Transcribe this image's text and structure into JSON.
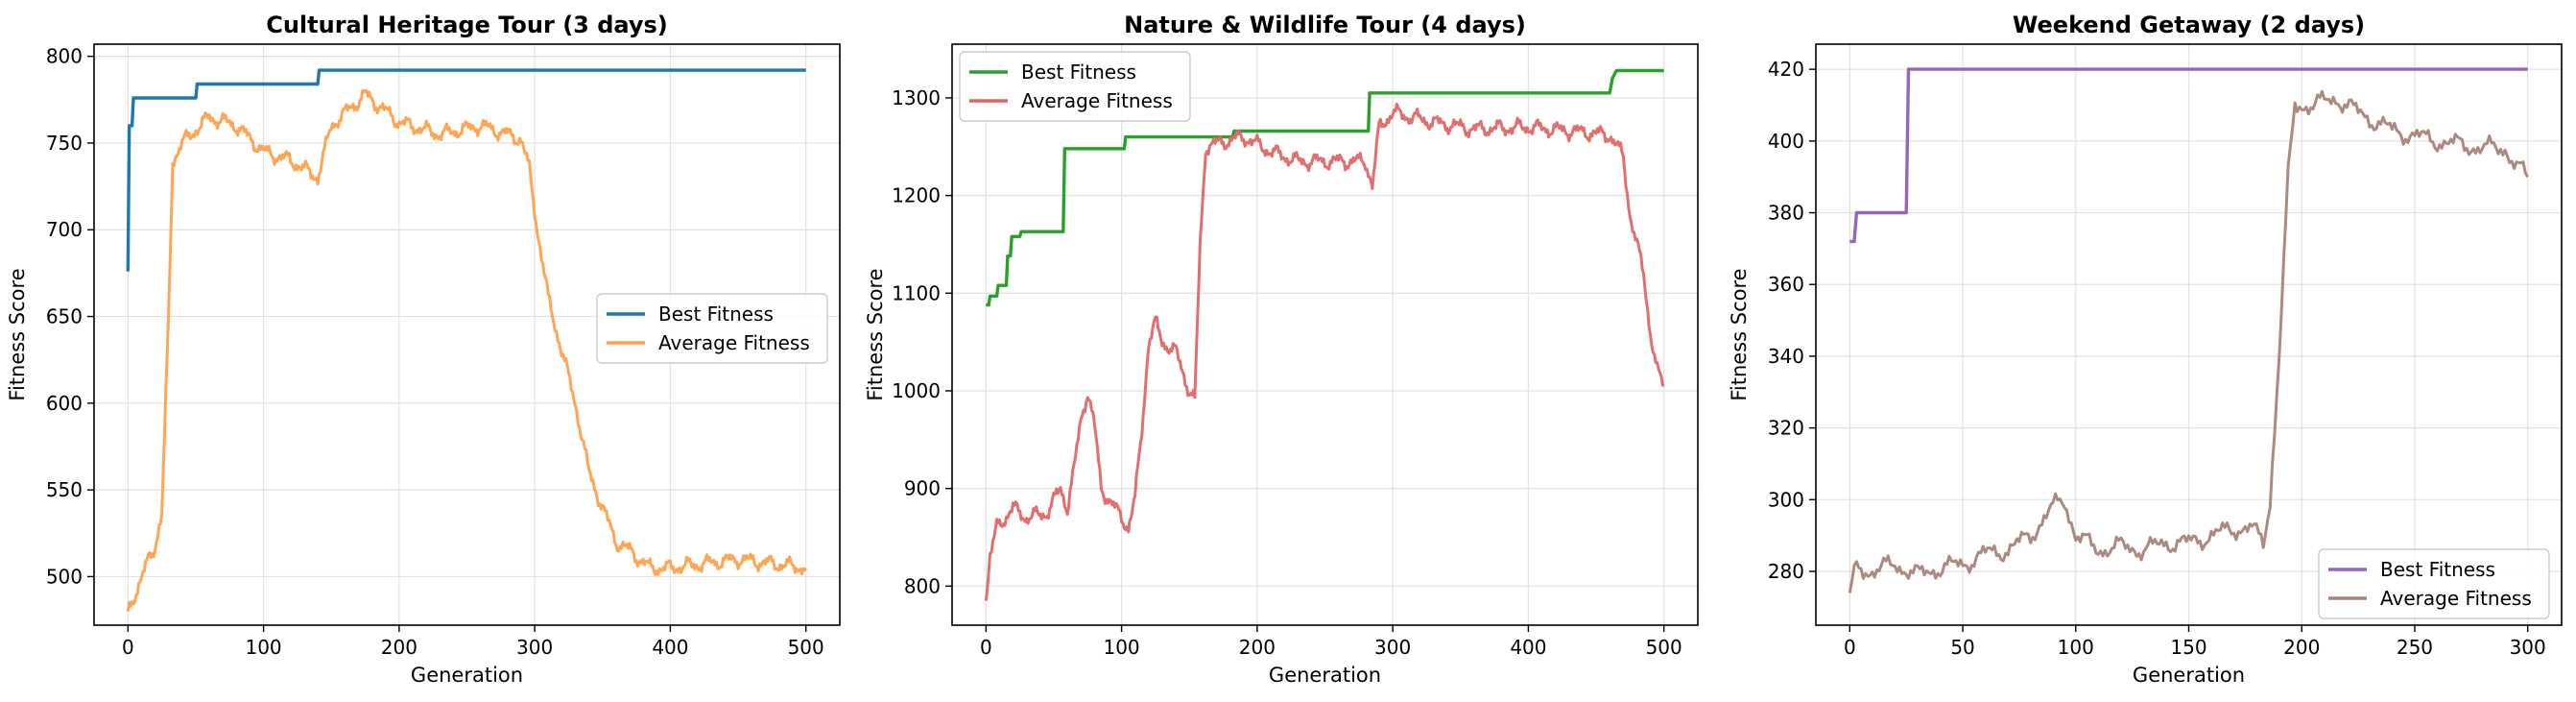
{
  "chart_data": [
    {
      "type": "line",
      "title": "Cultural Heritage Tour (3 days)",
      "xlabel": "Generation",
      "ylabel": "Fitness Score",
      "xlim": [
        -25,
        525
      ],
      "ylim": [
        472,
        807
      ],
      "xticks": [
        0,
        100,
        200,
        300,
        400,
        500
      ],
      "yticks": [
        500,
        550,
        600,
        650,
        700,
        750,
        800
      ],
      "grid": true,
      "legend": "center-right",
      "series": [
        {
          "name": "Best Fitness",
          "color": "#1f77b4",
          "style": "step",
          "points": [
            [
              0,
              676
            ],
            [
              1,
              760
            ],
            [
              3,
              760
            ],
            [
              4,
              776
            ],
            [
              50,
              776
            ],
            [
              51,
              784
            ],
            [
              140,
              784
            ],
            [
              141,
              792
            ],
            [
              500,
              792
            ]
          ]
        },
        {
          "name": "Average Fitness",
          "color": "#ffa04d",
          "style": "noisy",
          "amp": 5,
          "points": [
            [
              0,
              480
            ],
            [
              5,
              490
            ],
            [
              10,
              498
            ],
            [
              15,
              510
            ],
            [
              20,
              518
            ],
            [
              25,
              535
            ],
            [
              30,
              650
            ],
            [
              33,
              740
            ],
            [
              40,
              750
            ],
            [
              60,
              765
            ],
            [
              80,
              760
            ],
            [
              100,
              745
            ],
            [
              120,
              740
            ],
            [
              140,
              730
            ],
            [
              150,
              760
            ],
            [
              175,
              778
            ],
            [
              200,
              762
            ],
            [
              230,
              755
            ],
            [
              260,
              760
            ],
            [
              280,
              755
            ],
            [
              290,
              752
            ],
            [
              296,
              735
            ],
            [
              302,
              700
            ],
            [
              310,
              660
            ],
            [
              320,
              630
            ],
            [
              330,
              600
            ],
            [
              340,
              560
            ],
            [
              350,
              540
            ],
            [
              360,
              520
            ],
            [
              370,
              515
            ],
            [
              385,
              505
            ],
            [
              400,
              505
            ],
            [
              450,
              510
            ],
            [
              500,
              505
            ]
          ]
        }
      ]
    },
    {
      "type": "line",
      "title": "Nature & Wildlife Tour (4 days)",
      "xlabel": "Generation",
      "ylabel": "Fitness Score",
      "xlim": [
        -25,
        525
      ],
      "ylim": [
        760,
        1355
      ],
      "xticks": [
        0,
        100,
        200,
        300,
        400,
        500
      ],
      "yticks": [
        800,
        900,
        1000,
        1100,
        1200,
        1300
      ],
      "grid": true,
      "legend": "top-left",
      "series": [
        {
          "name": "Best Fitness",
          "color": "#2ca02c",
          "style": "step",
          "points": [
            [
              0,
              1088
            ],
            [
              2,
              1088
            ],
            [
              3,
              1097
            ],
            [
              8,
              1097
            ],
            [
              9,
              1108
            ],
            [
              15,
              1108
            ],
            [
              16,
              1138
            ],
            [
              18,
              1138
            ],
            [
              19,
              1158
            ],
            [
              25,
              1158
            ],
            [
              26,
              1163
            ],
            [
              57,
              1163
            ],
            [
              58,
              1248
            ],
            [
              102,
              1248
            ],
            [
              103,
              1260
            ],
            [
              182,
              1260
            ],
            [
              183,
              1266
            ],
            [
              282,
              1266
            ],
            [
              283,
              1305
            ],
            [
              460,
              1305
            ],
            [
              462,
              1320
            ],
            [
              465,
              1328
            ],
            [
              500,
              1328
            ]
          ]
        },
        {
          "name": "Average Fitness",
          "color": "#e06666",
          "style": "noisy",
          "amp": 9,
          "points": [
            [
              0,
              785
            ],
            [
              3,
              830
            ],
            [
              8,
              860
            ],
            [
              20,
              880
            ],
            [
              30,
              870
            ],
            [
              45,
              875
            ],
            [
              55,
              900
            ],
            [
              60,
              880
            ],
            [
              65,
              920
            ],
            [
              70,
              970
            ],
            [
              75,
              1000
            ],
            [
              80,
              965
            ],
            [
              85,
              900
            ],
            [
              95,
              880
            ],
            [
              105,
              860
            ],
            [
              110,
              890
            ],
            [
              115,
              960
            ],
            [
              120,
              1050
            ],
            [
              125,
              1070
            ],
            [
              130,
              1050
            ],
            [
              140,
              1040
            ],
            [
              145,
              1020
            ],
            [
              150,
              1000
            ],
            [
              154,
              990
            ],
            [
              158,
              1150
            ],
            [
              162,
              1250
            ],
            [
              175,
              1255
            ],
            [
              190,
              1260
            ],
            [
              210,
              1245
            ],
            [
              230,
              1235
            ],
            [
              260,
              1235
            ],
            [
              280,
              1235
            ],
            [
              285,
              1210
            ],
            [
              290,
              1270
            ],
            [
              300,
              1285
            ],
            [
              330,
              1275
            ],
            [
              360,
              1268
            ],
            [
              400,
              1270
            ],
            [
              440,
              1265
            ],
            [
              460,
              1262
            ],
            [
              470,
              1240
            ],
            [
              475,
              1180
            ],
            [
              480,
              1150
            ],
            [
              485,
              1120
            ],
            [
              490,
              1060
            ],
            [
              495,
              1020
            ],
            [
              500,
              1005
            ]
          ]
        }
      ]
    },
    {
      "type": "line",
      "title": "Weekend Getaway (2 days)",
      "xlabel": "Generation",
      "ylabel": "Fitness Score",
      "xlim": [
        -15,
        315
      ],
      "ylim": [
        265,
        427
      ],
      "xticks": [
        0,
        50,
        100,
        150,
        200,
        250,
        300
      ],
      "yticks": [
        280,
        300,
        320,
        340,
        360,
        380,
        400,
        420
      ],
      "grid": true,
      "legend": "bottom-right",
      "series": [
        {
          "name": "Best Fitness",
          "color": "#9467bd",
          "style": "step",
          "points": [
            [
              0,
              372
            ],
            [
              2,
              372
            ],
            [
              3,
              380
            ],
            [
              25,
              380
            ],
            [
              26,
              420
            ],
            [
              300,
              420
            ]
          ]
        },
        {
          "name": "Average Fitness",
          "color": "#a9847a",
          "style": "noisy",
          "amp": 3,
          "points": [
            [
              0,
              274
            ],
            [
              3,
              281
            ],
            [
              10,
              280
            ],
            [
              20,
              282
            ],
            [
              30,
              279
            ],
            [
              40,
              281
            ],
            [
              50,
              282
            ],
            [
              60,
              285
            ],
            [
              70,
              286
            ],
            [
              80,
              290
            ],
            [
              90,
              298
            ],
            [
              95,
              300
            ],
            [
              100,
              290
            ],
            [
              110,
              286
            ],
            [
              120,
              287
            ],
            [
              130,
              286
            ],
            [
              140,
              288
            ],
            [
              150,
              288
            ],
            [
              160,
              290
            ],
            [
              170,
              292
            ],
            [
              178,
              292
            ],
            [
              183,
              288
            ],
            [
              186,
              300
            ],
            [
              190,
              340
            ],
            [
              194,
              390
            ],
            [
              197,
              410
            ],
            [
              205,
              410
            ],
            [
              215,
              412
            ],
            [
              225,
              408
            ],
            [
              240,
              403
            ],
            [
              260,
              400
            ],
            [
              280,
              398
            ],
            [
              290,
              398
            ],
            [
              295,
              393
            ],
            [
              300,
              390
            ]
          ]
        }
      ]
    }
  ]
}
